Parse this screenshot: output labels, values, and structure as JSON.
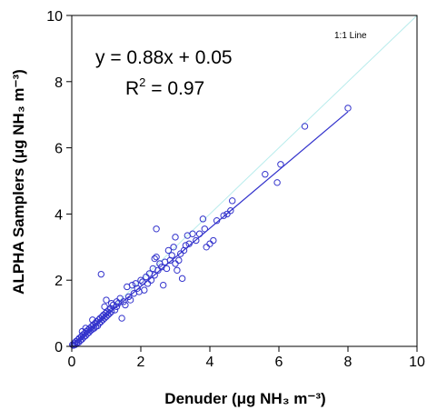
{
  "chart_data": {
    "type": "scatter",
    "xlabel": "Denuder (μg NH₃ m⁻³)",
    "ylabel": "ALPHA Samplers (μg NH₃ m⁻³)",
    "xlim": [
      0,
      10
    ],
    "ylim": [
      0,
      10
    ],
    "xticks": [
      "0",
      "2",
      "4",
      "6",
      "8",
      "10"
    ],
    "yticks": [
      "0",
      "2",
      "4",
      "6",
      "8",
      "10"
    ],
    "grid": false,
    "equation": "y = 0.88x + 0.05",
    "r2_label": "R",
    "r2_sup": "2",
    "r2_value": " = 0.97",
    "one_to_one_label": "1:1 Line",
    "fit": {
      "slope": 0.88,
      "intercept": 0.05,
      "x_range": [
        0,
        8
      ]
    },
    "one_to_one": {
      "x_range": [
        0,
        10
      ]
    },
    "colors": {
      "points": "#3333cc",
      "fit_line": "#3333cc",
      "one_to_one_line": "#b8ecec",
      "axes": "#000000"
    },
    "points": [
      [
        0.02,
        0.05
      ],
      [
        0.05,
        0.03
      ],
      [
        0.08,
        0.1
      ],
      [
        0.1,
        0.05
      ],
      [
        0.12,
        0.15
      ],
      [
        0.15,
        0.1
      ],
      [
        0.18,
        0.2
      ],
      [
        0.2,
        0.12
      ],
      [
        0.22,
        0.25
      ],
      [
        0.25,
        0.18
      ],
      [
        0.28,
        0.3
      ],
      [
        0.3,
        0.22
      ],
      [
        0.32,
        0.35
      ],
      [
        0.35,
        0.28
      ],
      [
        0.38,
        0.4
      ],
      [
        0.4,
        0.32
      ],
      [
        0.42,
        0.45
      ],
      [
        0.45,
        0.38
      ],
      [
        0.48,
        0.5
      ],
      [
        0.5,
        0.42
      ],
      [
        0.52,
        0.55
      ],
      [
        0.55,
        0.48
      ],
      [
        0.58,
        0.6
      ],
      [
        0.6,
        0.52
      ],
      [
        0.62,
        0.65
      ],
      [
        0.65,
        0.55
      ],
      [
        0.68,
        0.7
      ],
      [
        0.7,
        0.6
      ],
      [
        0.72,
        0.75
      ],
      [
        0.75,
        0.62
      ],
      [
        0.78,
        0.8
      ],
      [
        0.8,
        0.7
      ],
      [
        0.82,
        0.85
      ],
      [
        0.85,
        0.75
      ],
      [
        0.88,
        0.9
      ],
      [
        0.9,
        0.8
      ],
      [
        0.92,
        0.95
      ],
      [
        0.95,
        0.85
      ],
      [
        0.98,
        1.0
      ],
      [
        1.0,
        0.9
      ],
      [
        1.02,
        1.05
      ],
      [
        1.05,
        0.95
      ],
      [
        1.08,
        1.1
      ],
      [
        1.1,
        1.0
      ],
      [
        1.12,
        1.15
      ],
      [
        1.15,
        1.05
      ],
      [
        0.85,
        2.18
      ],
      [
        1.0,
        1.4
      ],
      [
        1.2,
        1.25
      ],
      [
        1.25,
        1.1
      ],
      [
        1.3,
        1.2
      ],
      [
        1.35,
        1.3
      ],
      [
        1.4,
        1.45
      ],
      [
        1.45,
        0.85
      ],
      [
        1.5,
        1.35
      ],
      [
        1.55,
        1.25
      ],
      [
        1.6,
        1.8
      ],
      [
        1.65,
        1.5
      ],
      [
        1.7,
        1.4
      ],
      [
        1.75,
        1.85
      ],
      [
        1.8,
        1.6
      ],
      [
        1.85,
        1.9
      ],
      [
        1.9,
        1.75
      ],
      [
        1.95,
        1.65
      ],
      [
        2.0,
        2.0
      ],
      [
        2.05,
        1.95
      ],
      [
        2.1,
        1.7
      ],
      [
        2.15,
        2.1
      ],
      [
        2.2,
        1.9
      ],
      [
        2.25,
        2.2
      ],
      [
        2.3,
        2.0
      ],
      [
        2.35,
        2.35
      ],
      [
        2.4,
        2.15
      ],
      [
        2.45,
        2.7
      ],
      [
        2.5,
        2.3
      ],
      [
        2.55,
        2.5
      ],
      [
        2.6,
        2.4
      ],
      [
        2.65,
        1.85
      ],
      [
        2.7,
        2.55
      ],
      [
        2.75,
        2.35
      ],
      [
        2.8,
        2.9
      ],
      [
        2.85,
        2.6
      ],
      [
        2.9,
        2.75
      ],
      [
        2.95,
        3.0
      ],
      [
        3.0,
        2.5
      ],
      [
        3.05,
        2.3
      ],
      [
        3.1,
        2.6
      ],
      [
        3.15,
        2.8
      ],
      [
        3.2,
        2.05
      ],
      [
        3.25,
        2.9
      ],
      [
        3.3,
        3.05
      ],
      [
        3.35,
        3.35
      ],
      [
        3.4,
        3.1
      ],
      [
        3.5,
        3.4
      ],
      [
        3.6,
        3.2
      ],
      [
        3.7,
        3.4
      ],
      [
        3.8,
        3.85
      ],
      [
        3.85,
        3.55
      ],
      [
        3.9,
        3.0
      ],
      [
        4.0,
        3.1
      ],
      [
        4.1,
        3.2
      ],
      [
        4.2,
        3.8
      ],
      [
        4.4,
        3.95
      ],
      [
        4.5,
        4.0
      ],
      [
        4.6,
        4.1
      ],
      [
        4.65,
        4.4
      ],
      [
        5.6,
        5.2
      ],
      [
        5.95,
        4.95
      ],
      [
        6.05,
        5.5
      ],
      [
        6.75,
        6.65
      ],
      [
        8.0,
        7.2
      ],
      [
        2.45,
        3.55
      ],
      [
        3.0,
        3.3
      ],
      [
        2.4,
        2.65
      ],
      [
        1.3,
        1.35
      ],
      [
        0.6,
        0.8
      ],
      [
        0.4,
        0.55
      ],
      [
        0.3,
        0.45
      ],
      [
        0.95,
        1.2
      ],
      [
        1.15,
        1.3
      ]
    ]
  }
}
